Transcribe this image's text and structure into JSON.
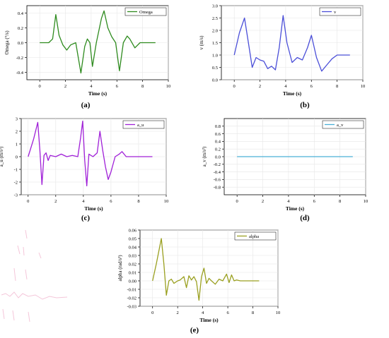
{
  "chart_data": [
    {
      "id": "a",
      "type": "line",
      "caption": "(a)",
      "xlabel": "Time (s)",
      "ylabel": "Omega (°/s)",
      "xlim": [
        -1,
        10
      ],
      "ylim": [
        -0.5,
        0.5
      ],
      "xticks": [
        0,
        2,
        4,
        6,
        8,
        10
      ],
      "xtick_labels": [
        "0",
        "2",
        "4",
        "6",
        "8",
        "10"
      ],
      "yticks": [
        -0.4,
        -0.2,
        0.0,
        0.2,
        0.4
      ],
      "ytick_labels": [
        "-0.4",
        "-0.2",
        "0.0",
        "0.2",
        "0.4"
      ],
      "grid": true,
      "legend": "top-right",
      "series": [
        {
          "name": "Omega",
          "color": "#2e8b1e",
          "x": [
            0,
            0.7,
            1.0,
            1.25,
            1.5,
            1.8,
            2.1,
            2.4,
            2.8,
            3.2,
            3.5,
            3.7,
            3.9,
            4.1,
            4.4,
            4.8,
            5.0,
            5.3,
            5.6,
            5.9,
            6.2,
            6.5,
            6.8,
            7.0,
            7.4,
            7.8,
            8.2,
            9.0
          ],
          "y": [
            0.0,
            0.0,
            0.05,
            0.38,
            0.1,
            -0.03,
            -0.1,
            -0.03,
            0.0,
            -0.41,
            -0.05,
            0.05,
            0.0,
            -0.32,
            0.0,
            0.33,
            0.43,
            0.2,
            0.08,
            0.0,
            -0.38,
            0.0,
            0.09,
            0.05,
            -0.07,
            0.0,
            0.0,
            0.0
          ]
        }
      ]
    },
    {
      "id": "b",
      "type": "line",
      "caption": "(b)",
      "xlabel": "Time (s)",
      "ylabel": "v (m/s)",
      "xlim": [
        -1,
        10
      ],
      "ylim": [
        0,
        3
      ],
      "xticks": [
        0,
        2,
        4,
        6,
        8,
        10
      ],
      "xtick_labels": [
        "0",
        "2",
        "4",
        "6",
        "8",
        "10"
      ],
      "yticks": [
        0.0,
        0.5,
        1.0,
        1.5,
        2.0,
        2.5,
        3.0
      ],
      "ytick_labels": [
        "0.0",
        "0.5",
        "1.0",
        "1.5",
        "2.0",
        "2.5",
        "3.0"
      ],
      "grid": true,
      "legend": "top-right",
      "series": [
        {
          "name": "v",
          "color": "#4b4fd8",
          "x": [
            0,
            0.4,
            0.8,
            1.1,
            1.4,
            1.7,
            2.0,
            2.3,
            2.6,
            2.9,
            3.2,
            3.5,
            3.8,
            4.1,
            4.5,
            4.9,
            5.3,
            5.7,
            6.0,
            6.4,
            6.8,
            7.2,
            7.6,
            8.0,
            8.5,
            9.0
          ],
          "y": [
            1.0,
            1.9,
            2.5,
            1.5,
            0.5,
            0.9,
            0.8,
            0.75,
            0.45,
            0.55,
            0.4,
            1.3,
            2.6,
            1.5,
            0.7,
            0.9,
            0.8,
            1.3,
            1.8,
            0.9,
            0.35,
            0.6,
            0.85,
            1.0,
            1.0,
            1.0
          ]
        }
      ]
    },
    {
      "id": "c",
      "type": "line",
      "caption": "(c)",
      "xlabel": "Time (s)",
      "ylabel": "a_u (m/s²)",
      "xlim": [
        -0.5,
        10
      ],
      "ylim": [
        -3,
        3
      ],
      "xticks": [
        0,
        2,
        4,
        6,
        8,
        10
      ],
      "xtick_labels": [
        "0",
        "2",
        "4",
        "6",
        "8",
        "10"
      ],
      "yticks": [
        -3,
        -2,
        -1,
        0,
        1,
        2,
        3
      ],
      "ytick_labels": [
        "-3",
        "-2",
        "-1",
        "0",
        "1",
        "2",
        "3"
      ],
      "grid": true,
      "legend": "top-right",
      "series": [
        {
          "name": "a_u",
          "color": "#a020d8",
          "x": [
            0,
            0.4,
            0.7,
            0.85,
            1.0,
            1.15,
            1.3,
            1.45,
            1.6,
            2.0,
            2.4,
            2.8,
            3.2,
            3.6,
            3.8,
            3.95,
            4.1,
            4.25,
            4.4,
            4.7,
            5.0,
            5.2,
            5.4,
            5.6,
            5.8,
            6.0,
            6.3,
            6.6,
            6.8,
            7.1,
            8.0,
            9.0
          ],
          "y": [
            0.0,
            1.4,
            2.7,
            0.5,
            -2.2,
            0.1,
            0.3,
            -0.3,
            0.1,
            0.0,
            0.2,
            0.0,
            0.1,
            0.0,
            1.5,
            2.8,
            -0.3,
            -2.3,
            0.2,
            0.0,
            0.3,
            2.0,
            0.5,
            -0.8,
            -1.8,
            -1.2,
            0.0,
            0.2,
            0.4,
            0.0,
            0.0,
            0.0
          ]
        }
      ]
    },
    {
      "id": "d",
      "type": "line",
      "caption": "(d)",
      "xlabel": "Time (s)",
      "ylabel": "a_v (m/s²)",
      "xlim": [
        -1,
        10
      ],
      "ylim": [
        -1,
        1
      ],
      "xticks": [
        0,
        2,
        4,
        6,
        8,
        10
      ],
      "xtick_labels": [
        "0",
        "2",
        "4",
        "6",
        "8",
        "10"
      ],
      "yticks": [
        -0.8,
        -0.6,
        -0.4,
        -0.2,
        0.0,
        0.2,
        0.4,
        0.6,
        0.8
      ],
      "ytick_labels": [
        "-0.8",
        "-0.6",
        "-0.4",
        "-0.2",
        "0.0",
        "0.2",
        "0.4",
        "0.6",
        "0.8"
      ],
      "grid": true,
      "legend": "top-right",
      "series": [
        {
          "name": "a_v",
          "color": "#4ab0d8",
          "x": [
            0,
            9
          ],
          "y": [
            0.0,
            0.0
          ]
        }
      ]
    },
    {
      "id": "e",
      "type": "line",
      "caption": "(e)",
      "xlabel": "Time (s)",
      "ylabel": "alpha (rad/s²)",
      "xlim": [
        -1,
        10
      ],
      "ylim": [
        -0.03,
        0.06
      ],
      "xticks": [
        0,
        2,
        4,
        6,
        8,
        10
      ],
      "xtick_labels": [
        "0",
        "2",
        "4",
        "6",
        "8",
        "10"
      ],
      "yticks": [
        -0.03,
        -0.02,
        -0.01,
        0.0,
        0.01,
        0.02,
        0.03,
        0.04,
        0.05,
        0.06
      ],
      "ytick_labels": [
        "-0.03",
        "-0.02",
        "-0.01",
        "0.00",
        "0.01",
        "0.02",
        "0.03",
        "0.04",
        "0.05",
        "0.06"
      ],
      "grid": true,
      "legend": "top-right",
      "series": [
        {
          "name": "alpha",
          "color": "#9aa020",
          "x": [
            0,
            0.3,
            0.7,
            0.9,
            1.1,
            1.3,
            1.5,
            1.7,
            2.0,
            2.2,
            2.5,
            2.7,
            2.9,
            3.1,
            3.3,
            3.5,
            3.7,
            3.9,
            4.1,
            4.3,
            4.5,
            4.7,
            5.0,
            5.3,
            5.6,
            5.9,
            6.1,
            6.3,
            6.5,
            6.7,
            7.0,
            7.5,
            8.5
          ],
          "y": [
            0.0,
            0.02,
            0.05,
            0.02,
            -0.017,
            0.0,
            0.002,
            -0.003,
            0.0,
            0.001,
            0.005,
            -0.008,
            0.006,
            0.001,
            0.005,
            -0.001,
            -0.023,
            0.005,
            0.015,
            -0.003,
            0.003,
            0.0,
            -0.004,
            0.002,
            0.0,
            0.008,
            -0.002,
            0.007,
            0.0,
            0.001,
            0.0,
            0.0,
            0.0
          ]
        }
      ]
    }
  ]
}
